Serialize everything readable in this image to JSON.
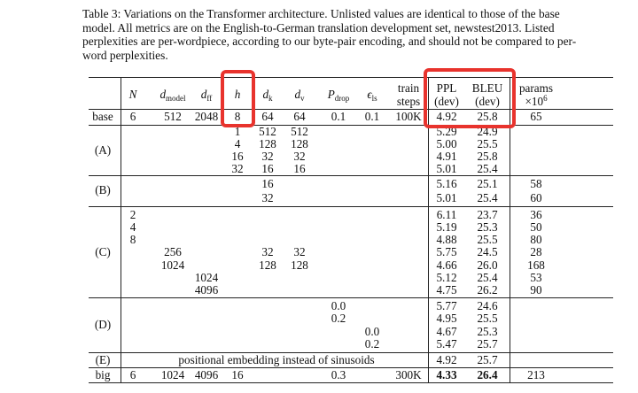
{
  "caption": "Table 3: Variations on the Transformer architecture. Unlisted values are identical to those of the base model. All metrics are on the English-to-German translation development set, newstest2013. Listed perplexities are per-wordpiece, according to our byte-pair encoding, and should not be compared to per-word perplexities.",
  "header": {
    "N": "N",
    "dmodel_base": "d",
    "dmodel_sub": "model",
    "dff_base": "d",
    "dff_sub": "ff",
    "h": "h",
    "dk_base": "d",
    "dk_sub": "k",
    "dv_base": "d",
    "dv_sub": "v",
    "pdrop_base": "P",
    "pdrop_sub": "drop",
    "els_base": "ϵ",
    "els_sub": "ls",
    "train_1": "train",
    "train_2": "steps",
    "ppl_1": "PPL",
    "ppl_2": "(dev)",
    "bleu_1": "BLEU",
    "bleu_2": "(dev)",
    "params_1": "params",
    "params_2": "×10",
    "params_exp": "6"
  },
  "base": {
    "label": "base",
    "N": "6",
    "dmodel": "512",
    "dff": "2048",
    "h": "8",
    "dk": "64",
    "dv": "64",
    "pdrop": "0.1",
    "els": "0.1",
    "train": "100K",
    "ppl": "4.92",
    "bleu": "25.8",
    "params": "65"
  },
  "groupA": {
    "label": "(A)",
    "rows": [
      {
        "h": "1",
        "dk": "512",
        "dv": "512",
        "ppl": "5.29",
        "bleu": "24.9"
      },
      {
        "h": "4",
        "dk": "128",
        "dv": "128",
        "ppl": "5.00",
        "bleu": "25.5"
      },
      {
        "h": "16",
        "dk": "32",
        "dv": "32",
        "ppl": "4.91",
        "bleu": "25.8"
      },
      {
        "h": "32",
        "dk": "16",
        "dv": "16",
        "ppl": "5.01",
        "bleu": "25.4"
      }
    ]
  },
  "groupB": {
    "label": "(B)",
    "rows": [
      {
        "dk": "16",
        "ppl": "5.16",
        "bleu": "25.1",
        "params": "58"
      },
      {
        "dk": "32",
        "ppl": "5.01",
        "bleu": "25.4",
        "params": "60"
      }
    ]
  },
  "groupC": {
    "label": "(C)",
    "rows": [
      {
        "N": "2",
        "ppl": "6.11",
        "bleu": "23.7",
        "params": "36"
      },
      {
        "N": "4",
        "ppl": "5.19",
        "bleu": "25.3",
        "params": "50"
      },
      {
        "N": "8",
        "ppl": "4.88",
        "bleu": "25.5",
        "params": "80"
      },
      {
        "dmodel": "256",
        "dk": "32",
        "dv": "32",
        "ppl": "5.75",
        "bleu": "24.5",
        "params": "28"
      },
      {
        "dmodel": "1024",
        "dk": "128",
        "dv": "128",
        "ppl": "4.66",
        "bleu": "26.0",
        "params": "168"
      },
      {
        "dff": "1024",
        "ppl": "5.12",
        "bleu": "25.4",
        "params": "53"
      },
      {
        "dff": "4096",
        "ppl": "4.75",
        "bleu": "26.2",
        "params": "90"
      }
    ]
  },
  "groupD": {
    "label": "(D)",
    "rows": [
      {
        "pdrop": "0.0",
        "ppl": "5.77",
        "bleu": "24.6"
      },
      {
        "pdrop": "0.2",
        "ppl": "4.95",
        "bleu": "25.5"
      },
      {
        "els": "0.0",
        "ppl": "4.67",
        "bleu": "25.3"
      },
      {
        "els": "0.2",
        "ppl": "5.47",
        "bleu": "25.7"
      }
    ]
  },
  "groupE": {
    "label": "(E)",
    "text": "positional embedding instead of sinusoids",
    "ppl": "4.92",
    "bleu": "25.7"
  },
  "big": {
    "label": "big",
    "N": "6",
    "dmodel": "1024",
    "dff": "4096",
    "h": "16",
    "pdrop": "0.3",
    "train": "300K",
    "ppl": "4.33",
    "bleu": "26.4",
    "params": "213"
  },
  "highlight_color": "#e8332d"
}
